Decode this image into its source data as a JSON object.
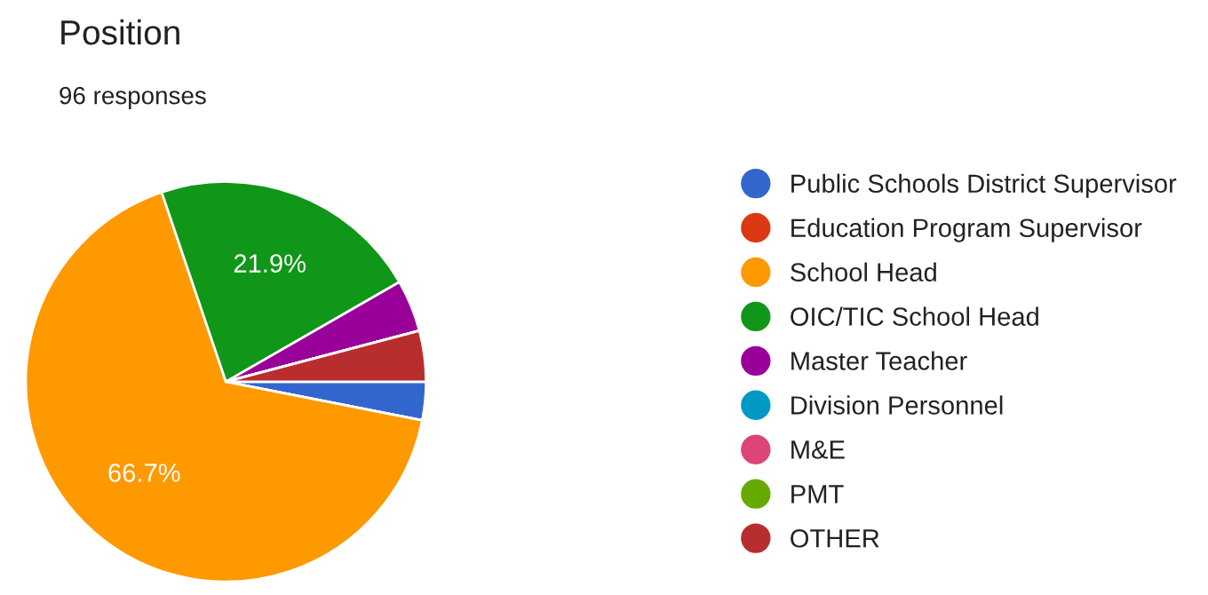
{
  "chart_data": {
    "type": "pie",
    "title": "Position",
    "subtitle": "96 responses",
    "categories": [
      "Public Schools District Supervisor",
      "Education Program Supervisor",
      "School Head",
      "OIC/TIC School Head",
      "Master Teacher",
      "Division Personnel",
      "M&E",
      "PMT",
      "OTHER"
    ],
    "values": [
      3.1,
      0,
      66.7,
      21.9,
      4.2,
      0,
      0,
      0,
      4.1
    ],
    "colors": [
      "#3366cc",
      "#dc3912",
      "#ff9900",
      "#109618",
      "#990099",
      "#0099c6",
      "#dd4477",
      "#66aa00",
      "#b82e2e"
    ],
    "value_labels": [
      null,
      null,
      "66.7%",
      "21.9%",
      null,
      null,
      null,
      null,
      null
    ],
    "legend": "right"
  }
}
